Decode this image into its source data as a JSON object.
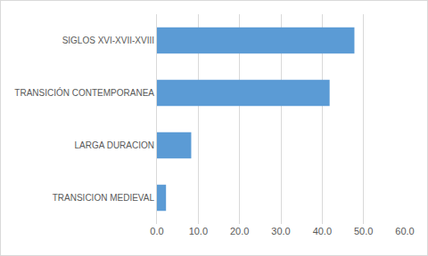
{
  "chart_data": {
    "type": "bar",
    "orientation": "horizontal",
    "categories": [
      "SIGLOS XVI-XVII-XVIII",
      "TRANSICIÓN CONTEMPORANEA",
      "LARGA DURACION",
      "TRANSICION MEDIEVAL"
    ],
    "values": [
      47.8,
      41.8,
      8.3,
      2.2
    ],
    "color": "#5b9bd5",
    "xlim": [
      0,
      60
    ],
    "xticks": [
      {
        "value": 0,
        "label": "0.0"
      },
      {
        "value": 10,
        "label": "10.0"
      },
      {
        "value": 20,
        "label": "20.0"
      },
      {
        "value": 30,
        "label": "30.0"
      },
      {
        "value": 40,
        "label": "40.0"
      },
      {
        "value": 50,
        "label": "50.0"
      },
      {
        "value": 60,
        "label": "60.0"
      }
    ],
    "grid": true
  }
}
